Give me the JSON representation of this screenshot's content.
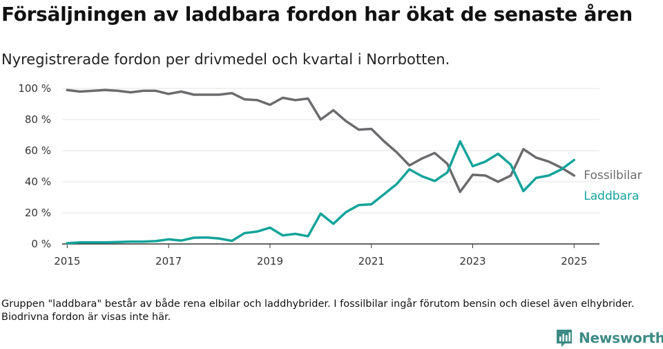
{
  "title": "Försäljningen av laddbara fordon har ökat de senaste åren",
  "subtitle": "Nyregistrerade fordon per drivmedel och kvartal i Norrbotten.",
  "footnote": "Gruppen \"laddbara\" består av både rena elbilar och laddhybrider. I fossilbilar ingår förutom bensin och diesel även elhybrider. Biodrivna fordon är visas inte här.",
  "brand": {
    "name": "Newsworthy",
    "icon": "bar-chart-icon",
    "color": "#3d8a86"
  },
  "chart_data": {
    "type": "line",
    "title": "",
    "xlabel": "",
    "ylabel": "",
    "xlim": [
      2014.9,
      2025.5
    ],
    "ylim": [
      0,
      100
    ],
    "x_ticks": [
      {
        "value": 2015,
        "label": "2015"
      },
      {
        "value": 2017,
        "label": "2017"
      },
      {
        "value": 2019,
        "label": "2019"
      },
      {
        "value": 2021,
        "label": "2021"
      },
      {
        "value": 2023,
        "label": "2023"
      },
      {
        "value": 2025,
        "label": "2025"
      }
    ],
    "y_ticks": [
      {
        "value": 0,
        "label": "0 %"
      },
      {
        "value": 20,
        "label": "20 %"
      },
      {
        "value": 40,
        "label": "40 %"
      },
      {
        "value": 60,
        "label": "60 %"
      },
      {
        "value": 80,
        "label": "80 %"
      },
      {
        "value": 100,
        "label": "100 %"
      }
    ],
    "grid": true,
    "legend": "direct labels at line ends (right)",
    "x": [
      "2015-Q1",
      "2015-Q2",
      "2015-Q3",
      "2015-Q4",
      "2016-Q1",
      "2016-Q2",
      "2016-Q3",
      "2016-Q4",
      "2017-Q1",
      "2017-Q2",
      "2017-Q3",
      "2017-Q4",
      "2018-Q1",
      "2018-Q2",
      "2018-Q3",
      "2018-Q4",
      "2019-Q1",
      "2019-Q2",
      "2019-Q3",
      "2019-Q4",
      "2020-Q1",
      "2020-Q2",
      "2020-Q3",
      "2020-Q4",
      "2021-Q1",
      "2021-Q2",
      "2021-Q3",
      "2021-Q4",
      "2022-Q1",
      "2022-Q2",
      "2022-Q3",
      "2022-Q4",
      "2023-Q1",
      "2023-Q2",
      "2023-Q3",
      "2023-Q4",
      "2024-Q1",
      "2024-Q2",
      "2024-Q3",
      "2024-Q4",
      "2025-Q1"
    ],
    "series": [
      {
        "name": "Fossilbilar",
        "color": "#6b6b6e",
        "values": [
          99,
          98,
          98.5,
          99,
          98.5,
          97.5,
          98.5,
          98.5,
          96.5,
          98,
          96,
          96,
          96,
          97,
          93,
          92.5,
          89.5,
          94,
          92.5,
          93.5,
          80,
          86,
          79,
          73.5,
          74,
          66,
          59,
          50.5,
          55,
          58.5,
          51.5,
          33.5,
          44.5,
          44,
          40,
          44,
          61,
          55.5,
          53,
          49,
          44
        ]
      },
      {
        "name": "Laddbara",
        "color": "#13a39a",
        "values": [
          0.5,
          1,
          1,
          1,
          1.2,
          1.5,
          1.5,
          1.8,
          3,
          2.2,
          4,
          4.2,
          3.5,
          2,
          7,
          8,
          10.5,
          5.5,
          6.5,
          5,
          19.5,
          13,
          20.5,
          25,
          25.5,
          32,
          38.5,
          48,
          43.5,
          40.5,
          46,
          66,
          50,
          53,
          58,
          51,
          34,
          42.5,
          44,
          48,
          54
        ]
      }
    ]
  }
}
